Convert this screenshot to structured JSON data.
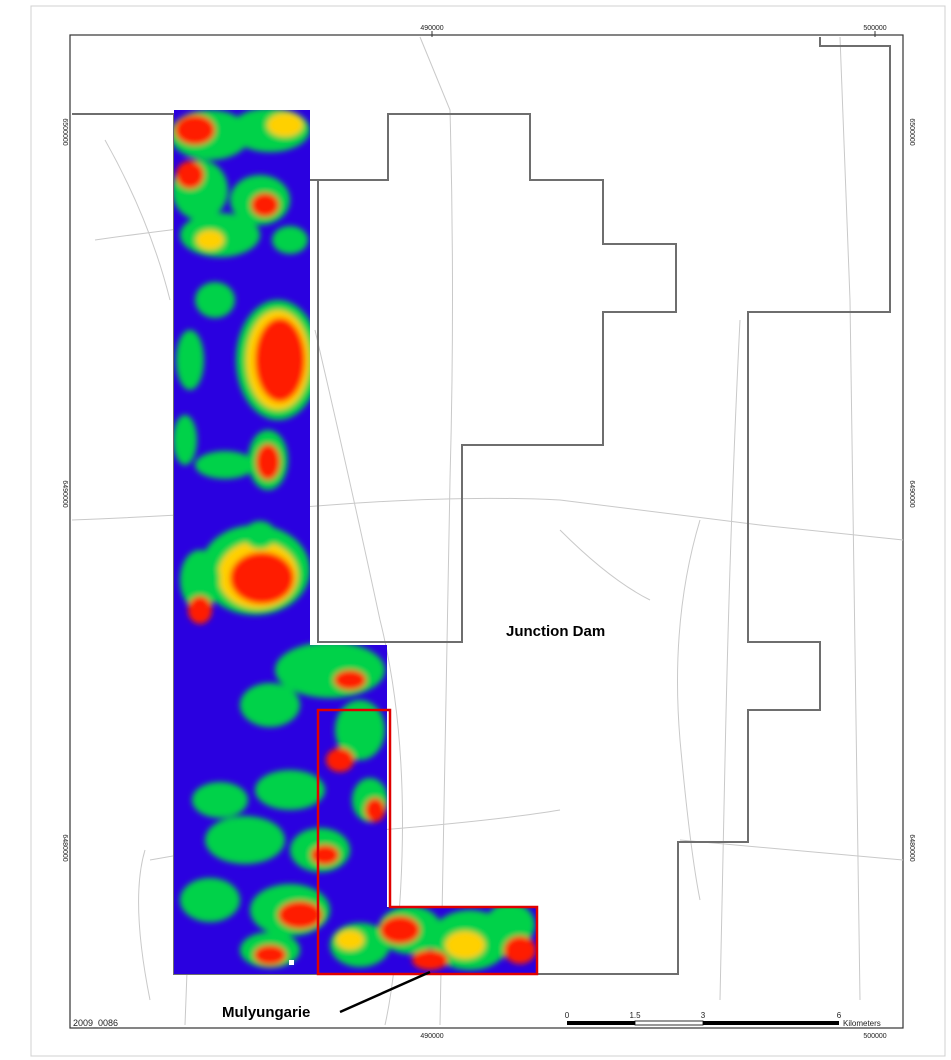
{
  "map": {
    "labels": {
      "junction_dam": "Junction Dam",
      "mulyungarie": "Mulyungarie",
      "map_id": "2009_0086"
    },
    "coords": {
      "top_490000": "490000",
      "top_500000": "500000",
      "bottom_490000": "490000",
      "bottom_500000": "500000",
      "left_6500000": "6500000",
      "left_6490000": "6490000",
      "left_6480000": "6480000",
      "right_6500000": "6500000",
      "right_6490000": "6490000",
      "right_6480000": "6480000"
    },
    "scale_bar": {
      "ticks": [
        "0",
        "1.5",
        "3",
        "6"
      ],
      "unit": "Kilometers"
    },
    "colors": {
      "anomaly_low": "#2a00e0",
      "anomaly_mid": "#00d24a",
      "anomaly_high": "#ff1a00",
      "tenement_outline": "#6e6e6e",
      "highlight_outline": "#e00000",
      "roads": "#c9c9c9"
    }
  }
}
